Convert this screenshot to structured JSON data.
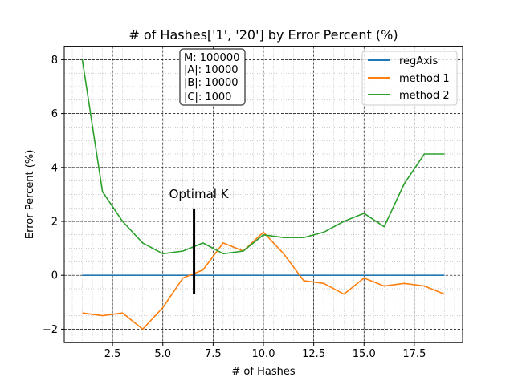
{
  "chart_data": {
    "type": "line",
    "title": "# of Hashes['1', '20'] by Error Percent (%)",
    "xlabel": "# of Hashes",
    "ylabel": "Error Percent (%)",
    "xlim": [
      0.1,
      19.9
    ],
    "ylim": [
      -2.5,
      8.5
    ],
    "x_ticks": [
      2.5,
      5.0,
      7.5,
      10.0,
      12.5,
      15.0,
      17.5
    ],
    "x_tick_labels": [
      "2.5",
      "5.0",
      "7.5",
      "10.0",
      "12.5",
      "15.0",
      "17.5"
    ],
    "y_ticks": [
      -2,
      0,
      2,
      4,
      6,
      8
    ],
    "y_tick_labels": [
      "−2",
      "0",
      "2",
      "4",
      "6",
      "8"
    ],
    "grid": true,
    "legend_position": "top-right",
    "series": [
      {
        "name": "regAxis",
        "color": "#1f77b4",
        "x": [
          1,
          2,
          3,
          4,
          5,
          6,
          7,
          8,
          9,
          10,
          11,
          12,
          13,
          14,
          15,
          16,
          17,
          18,
          19
        ],
        "y": [
          0,
          0,
          0,
          0,
          0,
          0,
          0,
          0,
          0,
          0,
          0,
          0,
          0,
          0,
          0,
          0,
          0,
          0,
          0
        ]
      },
      {
        "name": "method 1",
        "color": "#ff7f0e",
        "x": [
          1,
          2,
          3,
          4,
          5,
          6,
          7,
          8,
          9,
          10,
          11,
          12,
          13,
          14,
          15,
          16,
          17,
          18,
          19
        ],
        "y": [
          -1.4,
          -1.5,
          -1.4,
          -2.0,
          -1.2,
          -0.1,
          0.2,
          1.2,
          0.9,
          1.6,
          0.8,
          -0.2,
          -0.3,
          -0.7,
          -0.1,
          -0.4,
          -0.3,
          -0.4,
          -0.7
        ]
      },
      {
        "name": "method 2",
        "color": "#2ca02c",
        "x": [
          1,
          2,
          3,
          4,
          5,
          6,
          7,
          8,
          9,
          10,
          11,
          12,
          13,
          14,
          15,
          16,
          17,
          18,
          19
        ],
        "y": [
          8.0,
          3.1,
          2.0,
          1.2,
          0.8,
          0.9,
          1.2,
          0.8,
          0.9,
          1.5,
          1.4,
          1.4,
          1.6,
          2.0,
          2.3,
          1.8,
          3.4,
          4.5,
          4.5
        ]
      }
    ],
    "annotation": {
      "text": "Optimal K",
      "x": 6.55,
      "y_from": -0.7,
      "y_to": 2.45
    },
    "info_box": [
      "M: 100000",
      "|A|: 10000",
      "|B|: 10000",
      "|C|: 1000"
    ]
  }
}
